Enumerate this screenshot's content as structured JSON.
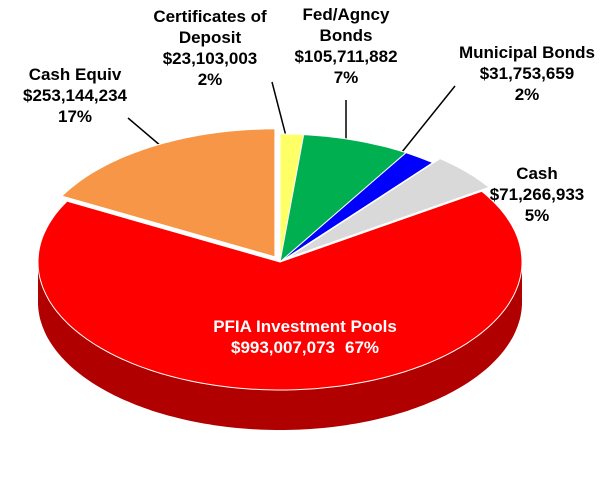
{
  "chart_data": {
    "type": "pie",
    "categories": [
      "Certificates of Deposit",
      "Fed/Agncy Bonds",
      "Municipal Bonds",
      "Cash",
      "PFIA Investment Pools",
      "Cash Equiv"
    ],
    "values": [
      23103003,
      105711882,
      31753659,
      71266933,
      993007073,
      253144234
    ],
    "value_labels": [
      "$23,103,003",
      "$105,711,882",
      "$31,753,659",
      "$71,266,933",
      "$993,007,073",
      "$253,144,234"
    ],
    "percent_labels": [
      "2%",
      "7%",
      "2%",
      "5%",
      "67%",
      "17%"
    ],
    "colors": [
      "#ffff66",
      "#00b050",
      "#0000ff",
      "#d9d9d9",
      "#ff0000",
      "#f79646"
    ],
    "side_colors": [
      "#b3b347",
      "#007a38",
      "#0000a0",
      "#999999",
      "#b00000",
      "#8a5a2b"
    ]
  }
}
